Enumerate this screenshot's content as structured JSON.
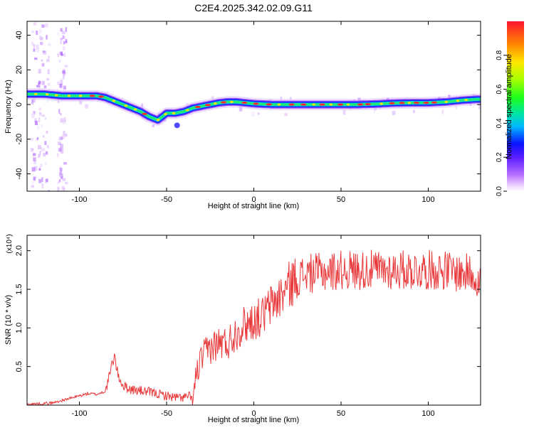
{
  "title": "C2E4.2025.342.02.09.G11",
  "chart_data": [
    {
      "type": "heatmap",
      "name": "spectrogram",
      "xlabel": "Height of straight line (km)",
      "ylabel": "Frequency (Hz)",
      "xlim": [
        -130,
        130
      ],
      "ylim": [
        -50,
        48
      ],
      "xticks": [
        -100,
        -50,
        0,
        50,
        100
      ],
      "yticks": [
        -40,
        -20,
        0,
        20,
        40
      ],
      "colorbar": {
        "label": "Normalized spectral amplitude",
        "range": [
          0,
          1
        ],
        "ticks": [
          0.0,
          0.2,
          0.4,
          0.6,
          0.8
        ]
      },
      "ridge": {
        "x": [
          -128,
          -120,
          -110,
          -100,
          -90,
          -85,
          -80,
          -75,
          -70,
          -65,
          -60,
          -55,
          -50,
          -45,
          -40,
          -35,
          -30,
          -25,
          -20,
          -15,
          -10,
          -5,
          0,
          10,
          20,
          30,
          40,
          50,
          60,
          70,
          80,
          90,
          100,
          110,
          120,
          128
        ],
        "y": [
          6,
          6,
          5,
          5,
          5,
          4,
          2,
          0,
          -2,
          -4,
          -7,
          -9,
          -5,
          -5,
          -4,
          -2,
          -1,
          0,
          1,
          1.5,
          1.5,
          1,
          0.5,
          0,
          0,
          0,
          0,
          0,
          0,
          0.3,
          0.8,
          1,
          1,
          1.5,
          2.5,
          3
        ]
      },
      "grid": false
    },
    {
      "type": "line",
      "name": "snr",
      "xlabel": "Height of straight line (km)",
      "ylabel": "SNR (10 * v/v)",
      "multiplier": "(x10⁴)",
      "xlim": [
        -130,
        130
      ],
      "ylim": [
        0,
        2.2
      ],
      "xticks": [
        -100,
        -50,
        0,
        50,
        100
      ],
      "yticks": [
        0.5,
        1.0,
        1.5,
        2.0
      ],
      "color": "#e8383a",
      "envelope": {
        "x": [
          -130,
          -115,
          -110,
          -100,
          -95,
          -90,
          -85,
          -82,
          -80,
          -78,
          -75,
          -70,
          -60,
          -50,
          -45,
          -40,
          -37,
          -35,
          -33,
          -30,
          -25,
          -20,
          -15,
          -10,
          -5,
          0,
          5,
          10,
          15,
          20,
          25,
          30,
          40,
          50,
          60,
          70,
          80,
          90,
          100,
          110,
          120,
          125,
          130
        ],
        "y": [
          0.01,
          0.03,
          0.06,
          0.12,
          0.15,
          0.14,
          0.18,
          0.45,
          0.65,
          0.4,
          0.25,
          0.2,
          0.17,
          0.12,
          0.1,
          0.1,
          0.12,
          0.05,
          0.4,
          0.6,
          0.75,
          0.8,
          0.8,
          0.95,
          1.05,
          1.1,
          1.15,
          1.3,
          1.4,
          1.55,
          1.65,
          1.7,
          1.72,
          1.75,
          1.75,
          1.75,
          1.75,
          1.75,
          1.75,
          1.75,
          1.7,
          1.72,
          1.6
        ]
      },
      "grid": false
    }
  ]
}
